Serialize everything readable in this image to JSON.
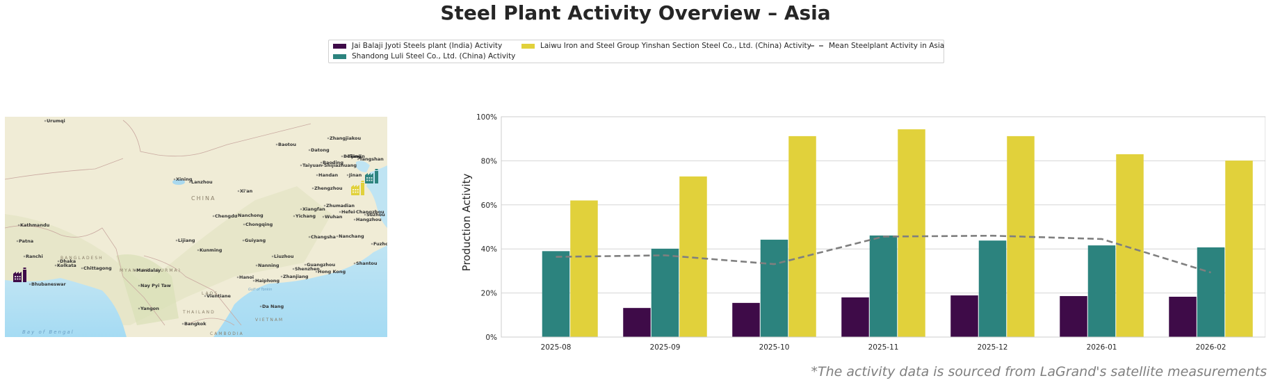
{
  "title": "Steel Plant Activity Overview – Asia",
  "legend": {
    "items": [
      {
        "label": "Jai Balaji Jyoti Steels plant (India) Activity",
        "color": "#3e0b48",
        "kind": "bar"
      },
      {
        "label": "Shandong Luli Steel Co., Ltd. (China) Activity",
        "color": "#2c837e",
        "kind": "bar"
      },
      {
        "label": "Laiwu Iron and Steel Group Yinshan Section Steel Co., Ltd. (China) Activity",
        "color": "#e1d13b",
        "kind": "bar"
      },
      {
        "label": "Mean Steelplant Activity in Asia",
        "color": "#7f7f7f",
        "kind": "dashed-line"
      }
    ]
  },
  "map": {
    "region_labels": [
      "CHINA",
      "MYANMAR (BURMA)",
      "BANGLADESH",
      "LAOS",
      "THAILAND",
      "VIETNAM",
      "CAMBODIA"
    ],
    "water_labels": [
      "Bay of Bengal",
      "Gulf of Tonkin"
    ],
    "city_labels": [
      "Urumqi",
      "Xining",
      "Lanzhou",
      "Baotou",
      "Datong",
      "Zhangjiakou",
      "Beijing",
      "Tangshan",
      "Tianjin",
      "Baoding",
      "Taiyuan",
      "Shijiazhuang",
      "Handan",
      "Jinan",
      "Zhengzhou",
      "Xi'an",
      "Zhumadian",
      "Xiangfan",
      "Hefei",
      "Changzhou",
      "Suzhou",
      "Hangzhou",
      "Chengdu",
      "Nanchong",
      "Yichang",
      "Wuhan",
      "Chongqing",
      "Changsha",
      "Nanchang",
      "Lijiang",
      "Guiyang",
      "Kunming",
      "Liuzhou",
      "Fuzhou",
      "Nanning",
      "Guangzhou",
      "Shenzhen",
      "Hong Kong",
      "Shantou",
      "Zhanjiang",
      "Hanoi",
      "Haiphong",
      "Kathmandu",
      "Patna",
      "Ranchi",
      "Dhaka",
      "Kolkata",
      "Chittagong",
      "Bhubaneswar",
      "Mandalay",
      "Nay Pyi Taw",
      "Yangon",
      "Vientiane",
      "Da Nang",
      "Bangkok"
    ],
    "markers": [
      {
        "plant": "Jai Balaji Jyoti Steels plant (India)",
        "icon": "factory-icon",
        "color": "#3e0b48"
      },
      {
        "plant": "Shandong Luli Steel Co., Ltd. (China)",
        "icon": "factory-icon",
        "color": "#2c837e"
      },
      {
        "plant": "Laiwu Iron and Steel Group Yinshan Section Steel Co., Ltd. (China)",
        "icon": "factory-icon",
        "color": "#e1d13b"
      }
    ]
  },
  "chart_data": {
    "type": "bar",
    "title": "",
    "xlabel": "",
    "ylabel": "Production Activity",
    "ylim": [
      0,
      100
    ],
    "yticks": [
      "0%",
      "20%",
      "40%",
      "60%",
      "80%",
      "100%"
    ],
    "grid": true,
    "categories": [
      "2025-08",
      "2025-09",
      "2025-10",
      "2025-11",
      "2025-12",
      "2026-01",
      "2026-02"
    ],
    "series": [
      {
        "name": "Jai Balaji Jyoti Steels plant (India) Activity",
        "color": "#3e0b48",
        "values": [
          null,
          13.2,
          15.5,
          18.0,
          18.9,
          18.6,
          18.3
        ]
      },
      {
        "name": "Shandong Luli Steel Co., Ltd. (China) Activity",
        "color": "#2c837e",
        "values": [
          39.0,
          40.1,
          44.2,
          46.1,
          43.8,
          41.6,
          40.7
        ]
      },
      {
        "name": "Laiwu Iron and Steel Group Yinshan Section Steel Co., Ltd. (China) Activity",
        "color": "#e1d13b",
        "values": [
          62.0,
          72.9,
          91.2,
          94.3,
          91.2,
          83.0,
          80.1
        ]
      }
    ],
    "line_series": {
      "name": "Mean Steelplant Activity in Asia",
      "color": "#7f7f7f",
      "style": "dashed",
      "values": [
        36.4,
        37.1,
        33.1,
        45.6,
        46.0,
        44.5,
        29.3
      ]
    },
    "legend_position": "top-center"
  },
  "footnote": "*The activity data is sourced from LaGrand's satellite measurements"
}
